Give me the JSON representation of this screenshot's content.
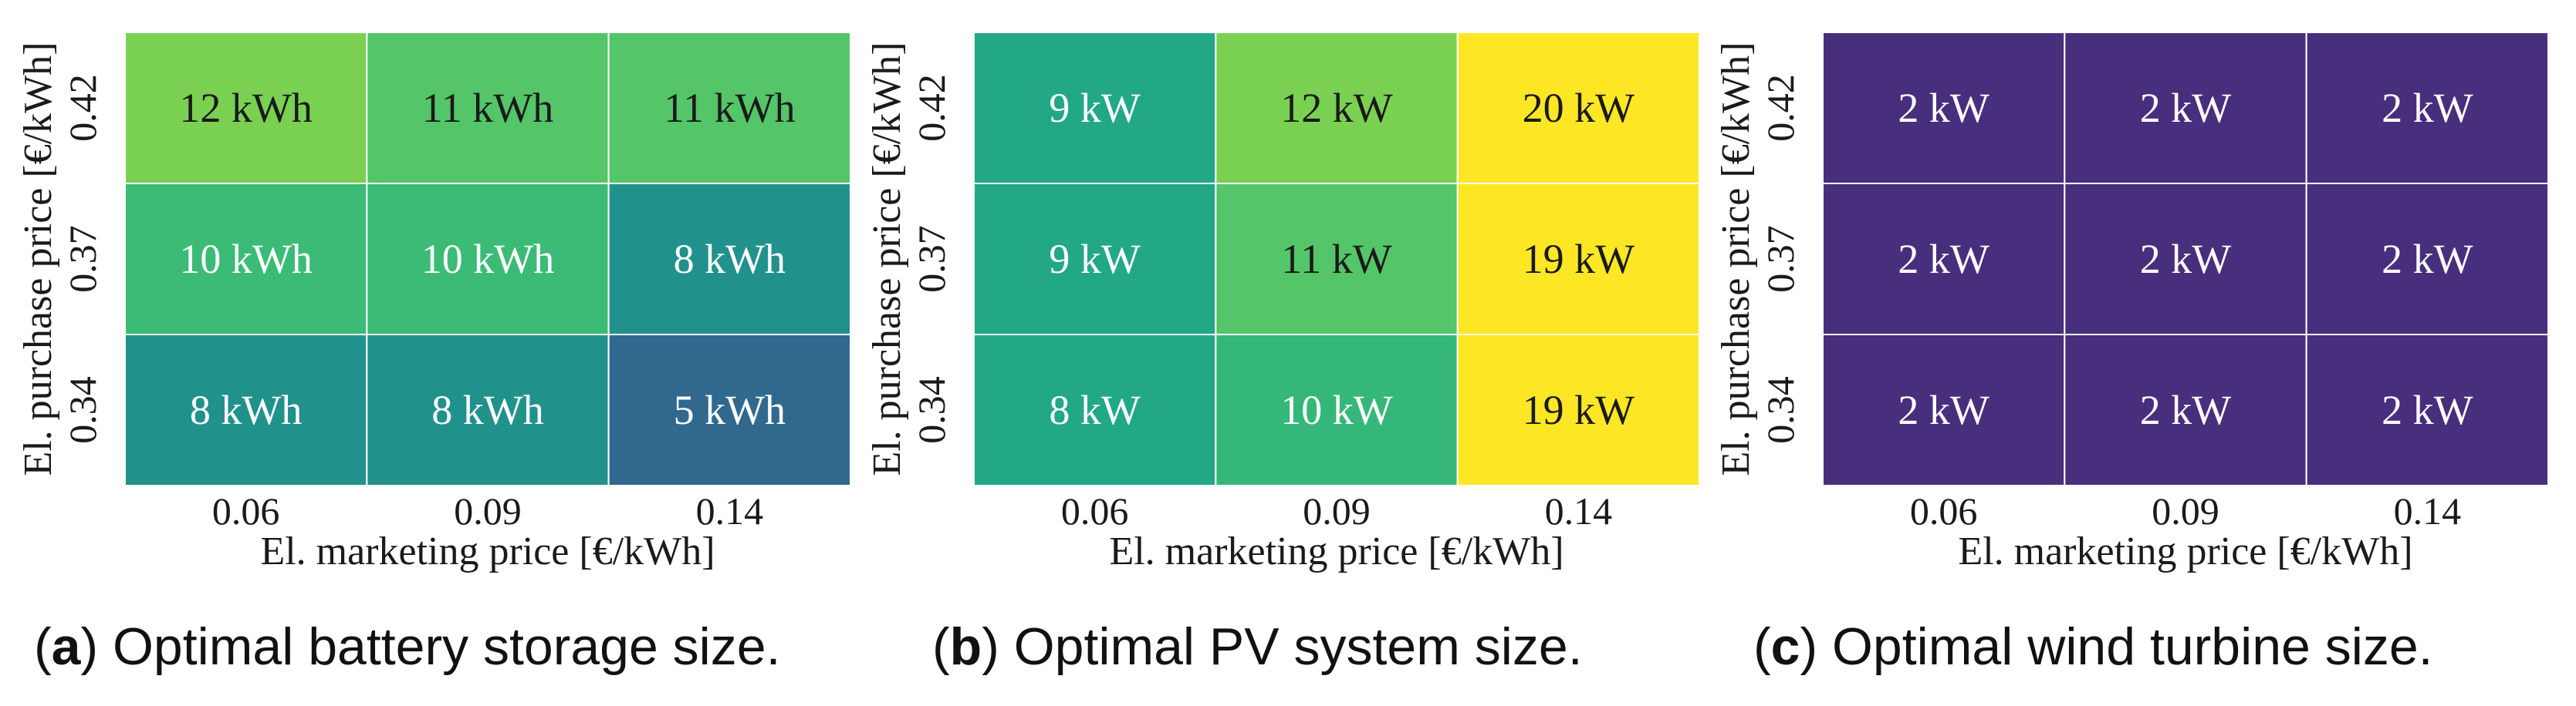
{
  "chart_data": [
    {
      "type": "heatmap",
      "panel": "a",
      "caption_label": "a",
      "caption_text": "Optimal battery storage size.",
      "xlabel": "El. marketing price [€/kWh]",
      "ylabel": "El. purchase price [€/kWh]",
      "x_ticks": [
        "0.06",
        "0.09",
        "0.14"
      ],
      "y_ticks": [
        "0.42",
        "0.37",
        "0.34"
      ],
      "values": [
        [
          12,
          11,
          11
        ],
        [
          10,
          10,
          8
        ],
        [
          8,
          8,
          5
        ]
      ],
      "unit": "kWh",
      "colors": [
        [
          "#7ad151",
          "#54c568",
          "#54c568"
        ],
        [
          "#3bbb75",
          "#3bbb75",
          "#21918c"
        ],
        [
          "#21918c",
          "#21918c",
          "#31688e"
        ]
      ],
      "text_colors": [
        [
          "#1a1a1a",
          "#1a1a1a",
          "#1a1a1a"
        ],
        [
          "#ffffff",
          "#ffffff",
          "#ffffff"
        ],
        [
          "#ffffff",
          "#ffffff",
          "#ffffff"
        ]
      ]
    },
    {
      "type": "heatmap",
      "panel": "b",
      "caption_label": "b",
      "caption_text": "Optimal PV system size.",
      "xlabel": "El. marketing price [€/kWh]",
      "ylabel": "El. purchase price [€/kWh]",
      "x_ticks": [
        "0.06",
        "0.09",
        "0.14"
      ],
      "y_ticks": [
        "0.42",
        "0.37",
        "0.34"
      ],
      "values": [
        [
          9,
          12,
          20
        ],
        [
          9,
          11,
          19
        ],
        [
          8,
          10,
          19
        ]
      ],
      "unit": "kW",
      "colors": [
        [
          "#22a884",
          "#7ad151",
          "#fde725"
        ],
        [
          "#22a884",
          "#54c568",
          "#fde725"
        ],
        [
          "#22a884",
          "#35b779",
          "#fde725"
        ]
      ],
      "text_colors": [
        [
          "#ffffff",
          "#1a1a1a",
          "#1a1a1a"
        ],
        [
          "#ffffff",
          "#1a1a1a",
          "#1a1a1a"
        ],
        [
          "#ffffff",
          "#ffffff",
          "#1a1a1a"
        ]
      ]
    },
    {
      "type": "heatmap",
      "panel": "c",
      "caption_label": "c",
      "caption_text": "Optimal wind turbine size.",
      "xlabel": "El. marketing price [€/kWh]",
      "ylabel": "El. purchase price [€/kWh]",
      "x_ticks": [
        "0.06",
        "0.09",
        "0.14"
      ],
      "y_ticks": [
        "0.42",
        "0.37",
        "0.34"
      ],
      "values": [
        [
          2,
          2,
          2
        ],
        [
          2,
          2,
          2
        ],
        [
          2,
          2,
          2
        ]
      ],
      "unit": "kW",
      "colors": [
        [
          "#472f7d",
          "#472f7d",
          "#472f7d"
        ],
        [
          "#472f7d",
          "#472f7d",
          "#472f7d"
        ],
        [
          "#472f7d",
          "#472f7d",
          "#472f7d"
        ]
      ],
      "text_colors": [
        [
          "#ffffff",
          "#ffffff",
          "#ffffff"
        ],
        [
          "#ffffff",
          "#ffffff",
          "#ffffff"
        ],
        [
          "#ffffff",
          "#ffffff",
          "#ffffff"
        ]
      ]
    }
  ]
}
